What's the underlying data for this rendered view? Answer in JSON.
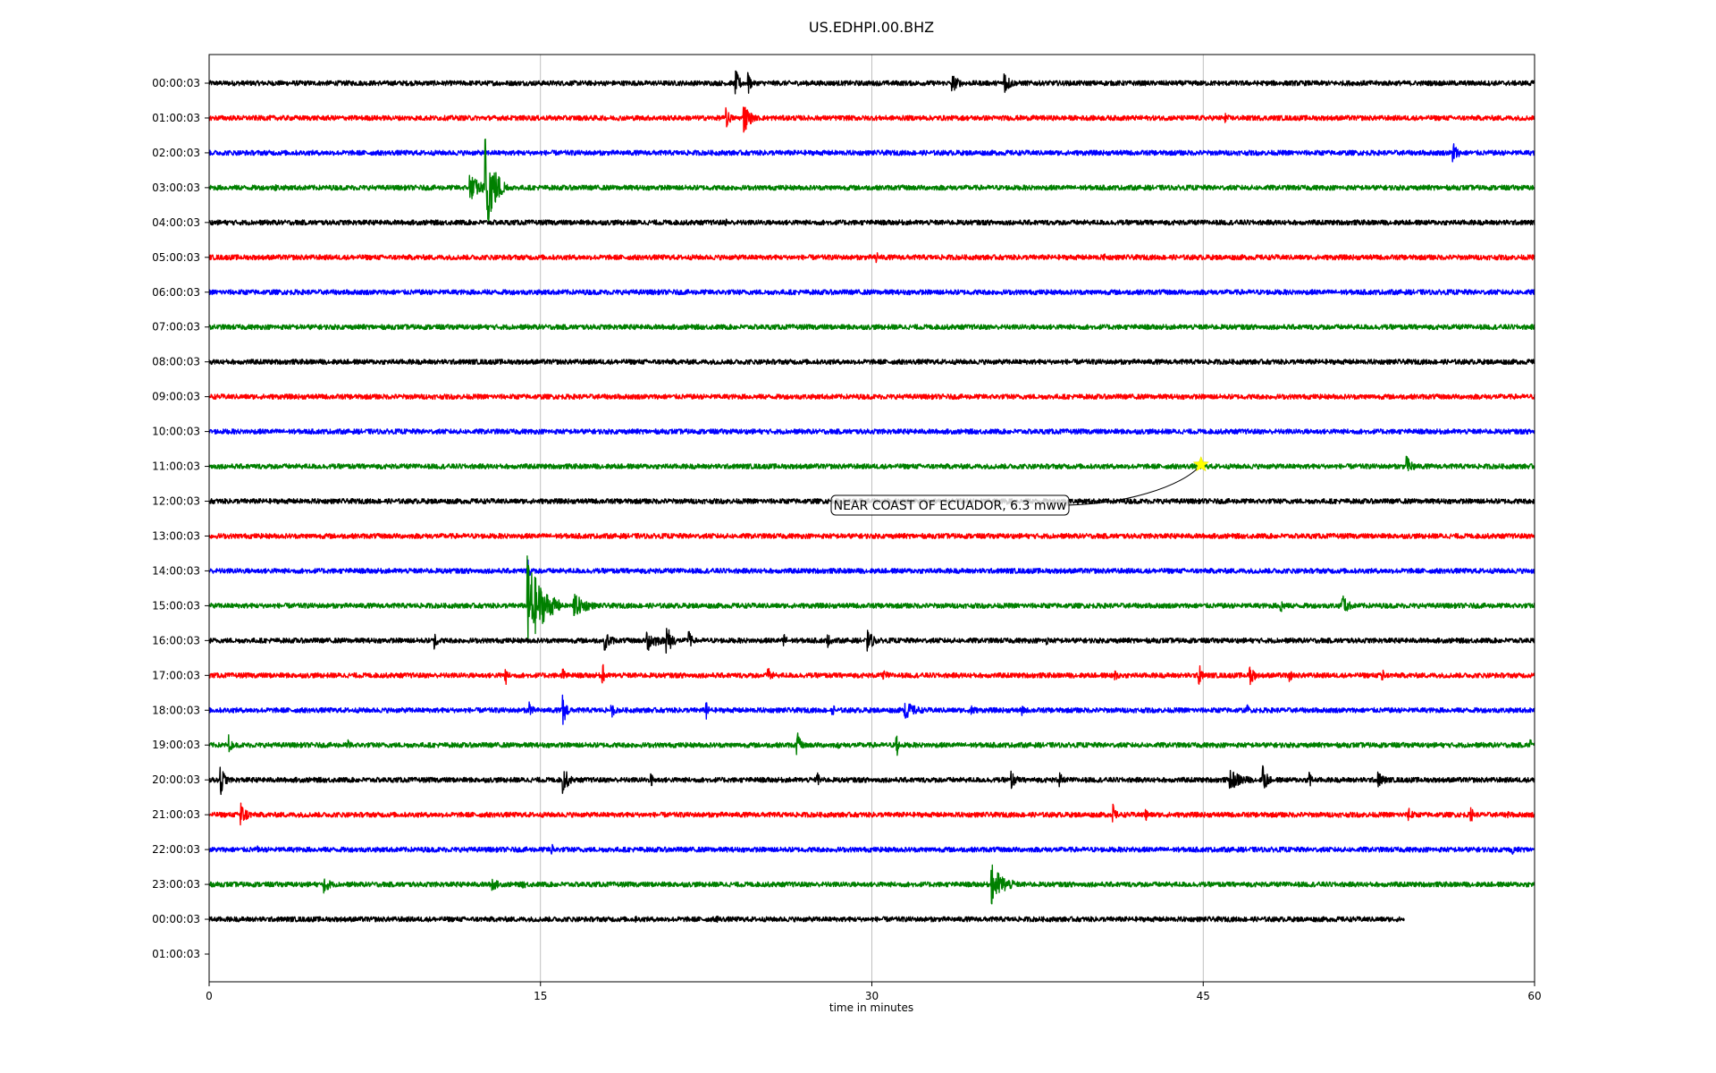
{
  "chart_data": {
    "type": "line",
    "title": "US.EDHPI.00.BHZ",
    "xlabel": "time in minutes",
    "xlim": [
      0,
      60
    ],
    "x_ticks": [
      "0",
      "15",
      "30",
      "45",
      "60"
    ],
    "x_tick_values": [
      0,
      15,
      30,
      45,
      60
    ],
    "grid": "vertical lines at x ticks",
    "trace_colors": [
      "#000000",
      "#ff0000",
      "#0000ff",
      "#008000"
    ],
    "rows": [
      {
        "label": "00:00:03",
        "end": 60,
        "events": [
          [
            23.8,
            0.9,
            0.5
          ],
          [
            24.4,
            0.6,
            0.4
          ],
          [
            33.6,
            0.6,
            0.8
          ],
          [
            36.0,
            0.6,
            0.8
          ]
        ]
      },
      {
        "label": "01:00:03",
        "end": 60,
        "events": [
          [
            23.4,
            0.6,
            0.5
          ],
          [
            24.2,
            0.9,
            0.7
          ],
          [
            46.0,
            0.3,
            0.5
          ]
        ]
      },
      {
        "label": "02:00:03",
        "end": 60,
        "events": [
          [
            56.3,
            0.6,
            0.6
          ]
        ]
      },
      {
        "label": "03:00:03",
        "end": 60,
        "events": [
          [
            11.8,
            0.8,
            1.2
          ],
          [
            12.5,
            2.8,
            1.0
          ],
          [
            3.0,
            0.2,
            1.0
          ]
        ]
      },
      {
        "label": "04:00:03",
        "end": 60,
        "events": [
          [
            23.4,
            0.2,
            0.3
          ]
        ]
      },
      {
        "label": "05:00:03",
        "end": 60,
        "events": [
          [
            30.2,
            0.4,
            0.2
          ],
          [
            40.5,
            0.2,
            0.2
          ]
        ]
      },
      {
        "label": "06:00:03",
        "end": 60,
        "events": [
          [
            12.5,
            0.2,
            0.3
          ]
        ]
      },
      {
        "label": "07:00:03",
        "end": 60,
        "events": []
      },
      {
        "label": "08:00:03",
        "end": 60,
        "events": []
      },
      {
        "label": "09:00:03",
        "end": 60,
        "events": []
      },
      {
        "label": "10:00:03",
        "end": 60,
        "events": []
      },
      {
        "label": "11:00:03",
        "end": 60,
        "events": [
          [
            54.2,
            0.6,
            0.8
          ]
        ]
      },
      {
        "label": "12:00:03",
        "end": 60,
        "events": [
          [
            36.1,
            0.2,
            0.3
          ]
        ]
      },
      {
        "label": "13:00:03",
        "end": 60,
        "events": []
      },
      {
        "label": "14:00:03",
        "end": 60,
        "events": [
          [
            14.4,
            0.7,
            0.3
          ]
        ]
      },
      {
        "label": "15:00:03",
        "end": 60,
        "events": [
          [
            14.4,
            2.8,
            1.5
          ],
          [
            16.5,
            0.7,
            1.5
          ],
          [
            48.5,
            0.4,
            0.6
          ],
          [
            51.3,
            0.6,
            0.8
          ]
        ]
      },
      {
        "label": "16:00:03",
        "end": 60,
        "events": [
          [
            10.2,
            0.5,
            0.4
          ],
          [
            17.9,
            0.6,
            0.8
          ],
          [
            19.8,
            0.7,
            1.2
          ],
          [
            20.7,
            1.0,
            0.6
          ],
          [
            21.7,
            0.6,
            0.4
          ],
          [
            26.0,
            0.4,
            0.5
          ],
          [
            28.0,
            0.4,
            0.5
          ],
          [
            29.8,
            0.6,
            0.8
          ],
          [
            37.9,
            0.3,
            0.3
          ]
        ]
      },
      {
        "label": "17:00:03",
        "end": 60,
        "events": [
          [
            13.4,
            0.5,
            0.4
          ],
          [
            16.0,
            0.4,
            0.5
          ],
          [
            17.8,
            0.6,
            0.4
          ],
          [
            25.3,
            0.5,
            0.5
          ],
          [
            30.5,
            0.3,
            1.0
          ],
          [
            41.0,
            0.3,
            1.0
          ],
          [
            44.8,
            0.6,
            0.4
          ],
          [
            47.1,
            0.6,
            0.6
          ],
          [
            48.9,
            0.4,
            0.4
          ],
          [
            53.1,
            0.3,
            0.5
          ]
        ]
      },
      {
        "label": "18:00:03",
        "end": 60,
        "events": [
          [
            14.5,
            0.5,
            0.4
          ],
          [
            16.0,
            0.9,
            0.5
          ],
          [
            18.2,
            0.4,
            0.6
          ],
          [
            22.5,
            0.5,
            0.3
          ],
          [
            28.2,
            0.4,
            0.5
          ],
          [
            31.5,
            0.5,
            1.5
          ],
          [
            34.5,
            0.3,
            0.8
          ],
          [
            36.8,
            0.3,
            0.5
          ],
          [
            47.0,
            0.3,
            0.5
          ]
        ]
      },
      {
        "label": "19:00:03",
        "end": 60,
        "events": [
          [
            0.9,
            0.6,
            0.3
          ],
          [
            6.3,
            0.3,
            0.6
          ],
          [
            26.6,
            0.7,
            0.5
          ],
          [
            31.1,
            0.6,
            0.3
          ],
          [
            28.5,
            0.2,
            0.5
          ],
          [
            59.8,
            0.3,
            0.3
          ]
        ]
      },
      {
        "label": "20:00:03",
        "end": 60,
        "events": [
          [
            0.5,
            0.9,
            0.5
          ],
          [
            16.0,
            0.9,
            0.6
          ],
          [
            20.0,
            0.4,
            0.5
          ],
          [
            27.5,
            0.4,
            0.7
          ],
          [
            36.3,
            0.5,
            0.7
          ],
          [
            38.5,
            0.4,
            0.5
          ],
          [
            46.2,
            0.6,
            1.6
          ],
          [
            47.7,
            0.9,
            0.5
          ],
          [
            49.8,
            0.5,
            0.3
          ],
          [
            52.9,
            0.5,
            0.8
          ]
        ]
      },
      {
        "label": "21:00:03",
        "end": 60,
        "events": [
          [
            1.4,
            0.7,
            0.8
          ],
          [
            40.9,
            0.6,
            0.4
          ],
          [
            42.4,
            0.4,
            0.3
          ],
          [
            54.3,
            0.4,
            0.6
          ],
          [
            57.1,
            0.5,
            0.4
          ],
          [
            58.8,
            0.2,
            0.8
          ]
        ]
      },
      {
        "label": "22:00:03",
        "end": 60,
        "events": [
          [
            2.2,
            0.2,
            0.5
          ],
          [
            15.5,
            0.3,
            0.5
          ],
          [
            41.8,
            0.2,
            0.3
          ],
          [
            59.0,
            0.3,
            0.4
          ]
        ]
      },
      {
        "label": "23:00:03",
        "end": 60,
        "events": [
          [
            5.2,
            0.5,
            0.8
          ],
          [
            12.8,
            0.4,
            0.8
          ],
          [
            14.2,
            0.3,
            0.5
          ],
          [
            35.4,
            1.2,
            1.3
          ]
        ]
      },
      {
        "label": "00:00:03",
        "end": 54.1,
        "events": [
          [
            19.3,
            0.2,
            0.3
          ],
          [
            23.0,
            0.2,
            0.3
          ]
        ]
      },
      {
        "label": "01:00:03",
        "end": 0,
        "events": []
      }
    ],
    "annotation": {
      "text": "NEAR COAST OF ECUADOR, 6.3 mww",
      "marker": "star",
      "marker_color": "#ffff00",
      "row": 11,
      "x": 44.9
    }
  }
}
